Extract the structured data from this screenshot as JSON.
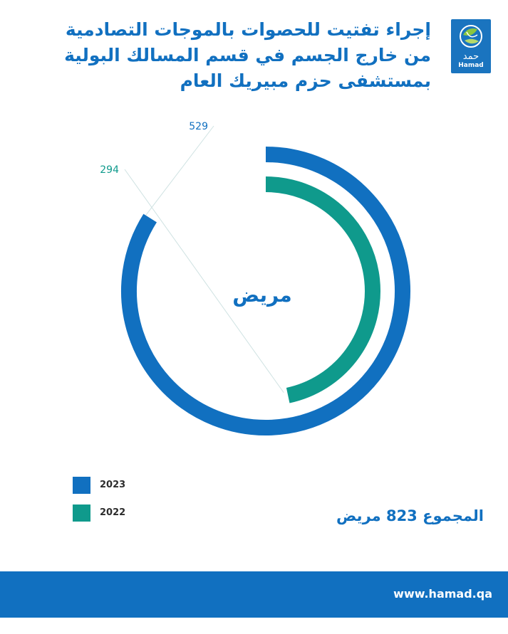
{
  "header": {
    "title_lines": [
      "إجراء تفتيت للحصوات بالموجات التصادمية",
      "من خارج الجسم في قسم المسالك البولية",
      "بمستشفى حزم مبيريك العام"
    ]
  },
  "logo": {
    "arabic": "حمد",
    "english": "Hamad"
  },
  "chart_data": {
    "type": "radial-bar",
    "center_label": "مريض",
    "series": [
      {
        "name": "2023",
        "value": 529,
        "color": "#1170c0"
      },
      {
        "name": "2022",
        "value": 294,
        "color": "#0f9a8c"
      }
    ]
  },
  "total": "المجموع 823 مريض",
  "footer": {
    "url": "www.hamad.qa"
  }
}
